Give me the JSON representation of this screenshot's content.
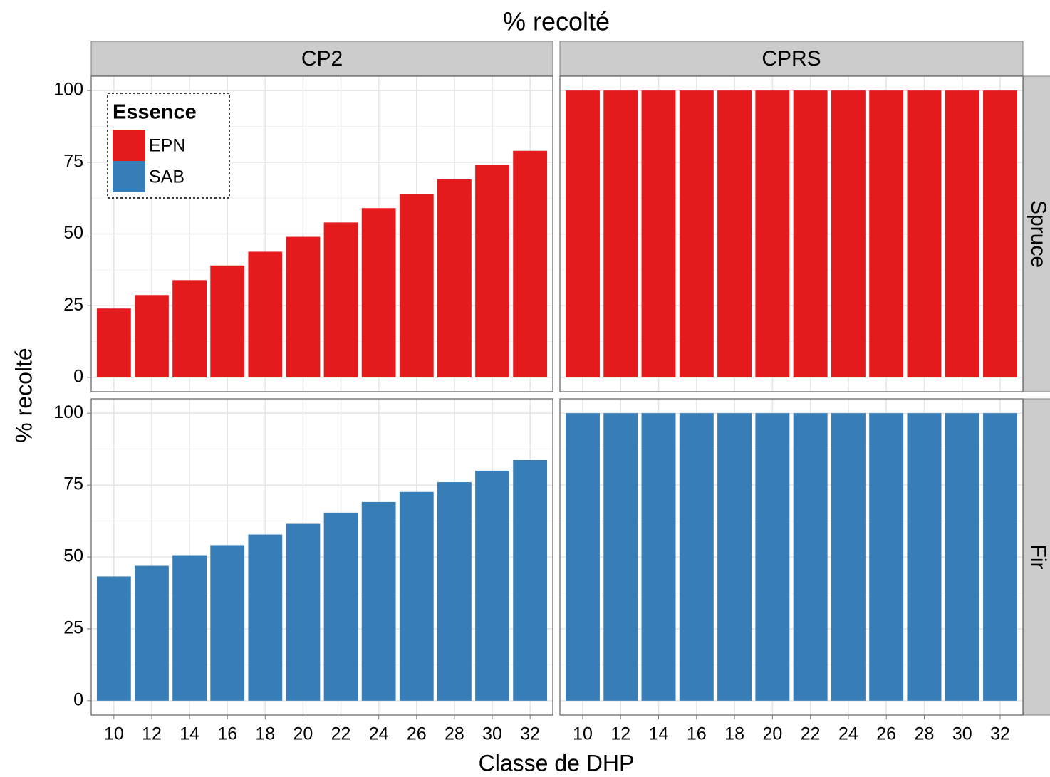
{
  "chart_data": {
    "type": "bar",
    "title": "% recolté",
    "xlabel": "Classe de DHP",
    "ylabel": "% recolté",
    "categories": [
      10,
      12,
      14,
      16,
      18,
      20,
      22,
      24,
      26,
      28,
      30,
      32
    ],
    "facet_columns": [
      "CP2",
      "CPRS"
    ],
    "facet_rows": [
      "Spruce",
      "Fir"
    ],
    "ylim": [
      -5,
      105
    ],
    "yticks": [
      0,
      25,
      50,
      75,
      100
    ],
    "grid": true,
    "legend": {
      "title": "Essence",
      "position": "top-left"
    },
    "series": [
      {
        "name": "EPN",
        "color": "#e41a1c",
        "values": [
          [
            24,
            28.7,
            33.9,
            39,
            43.8,
            49,
            54,
            59,
            64,
            69,
            74,
            79
          ],
          [
            100,
            100,
            100,
            100,
            100,
            100,
            100,
            100,
            100,
            100,
            100,
            100
          ]
        ]
      },
      {
        "name": "SAB",
        "color": "#377eb8",
        "values": [
          [
            43.2,
            46.9,
            50.6,
            54.1,
            57.8,
            61.5,
            65.4,
            69.1,
            72.6,
            76,
            80,
            83.7
          ],
          [
            100,
            100,
            100,
            100,
            100,
            100,
            100,
            100,
            100,
            100,
            100,
            100
          ]
        ]
      }
    ]
  }
}
